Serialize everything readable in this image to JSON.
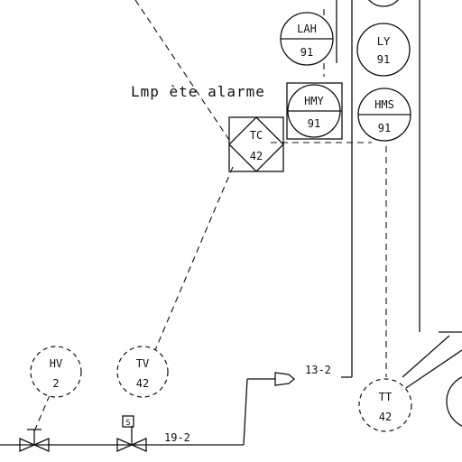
{
  "diagram": {
    "lamp_label": "Lmp ète alarme",
    "instruments": {
      "lah": {
        "tag": "LAH",
        "num": "91"
      },
      "ly": {
        "tag": "LY",
        "num": "91"
      },
      "hmy": {
        "tag": "HMY",
        "num": "91"
      },
      "hms": {
        "tag": "HMS",
        "num": "91"
      },
      "tc": {
        "tag": "TC",
        "num": "42"
      },
      "hv": {
        "tag": "HV",
        "num": "2"
      },
      "tv": {
        "tag": "TV",
        "num": "42"
      },
      "tt": {
        "tag": "TT",
        "num": "42"
      }
    },
    "line_labels": {
      "line_19_2": "19-2",
      "line_13_2": "13-2"
    },
    "valve_mark": "S"
  }
}
